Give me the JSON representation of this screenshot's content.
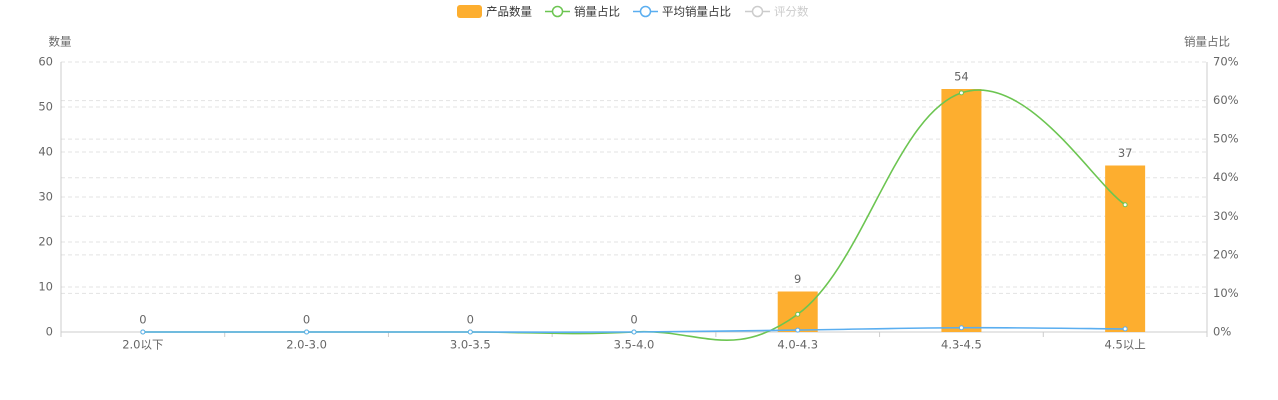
{
  "chart_data": {
    "type": "bar",
    "categories": [
      "2.0以下",
      "2.0-3.0",
      "3.0-3.5",
      "3.5-4.0",
      "4.0-4.3",
      "4.3-4.5",
      "4.5以上"
    ],
    "y_label": "数量",
    "y2_label": "销量占比",
    "ylim": [
      0,
      60
    ],
    "yticks": [
      0,
      10,
      20,
      30,
      40,
      50,
      60
    ],
    "y2lim": [
      0,
      70
    ],
    "y2ticks": [
      {
        "value": 0,
        "label": "0%"
      },
      {
        "value": 10,
        "label": "10%"
      },
      {
        "value": 20,
        "label": "20%"
      },
      {
        "value": 30,
        "label": "30%"
      },
      {
        "value": 40,
        "label": "40%"
      },
      {
        "value": 50,
        "label": "50%"
      },
      {
        "value": 60,
        "label": "60%"
      },
      {
        "value": 70,
        "label": "70%"
      }
    ],
    "grid": true,
    "series": [
      {
        "name": "产品数量",
        "type": "bar",
        "color": "#fdae2f",
        "values": [
          0,
          0,
          0,
          0,
          9,
          54,
          37
        ],
        "labels": true
      },
      {
        "name": "销量占比",
        "type": "line",
        "axis": "y2",
        "color": "#6cc551",
        "values": [
          0,
          0,
          0,
          0,
          4.6,
          62,
          33
        ]
      },
      {
        "name": "平均销量占比",
        "type": "line",
        "axis": "y2",
        "color": "#5aaef0",
        "values": [
          0,
          0,
          0,
          0,
          0.5,
          1.1,
          0.8
        ]
      },
      {
        "name": "评分数",
        "type": "line",
        "color": "#cccccc",
        "visible": false
      }
    ]
  }
}
